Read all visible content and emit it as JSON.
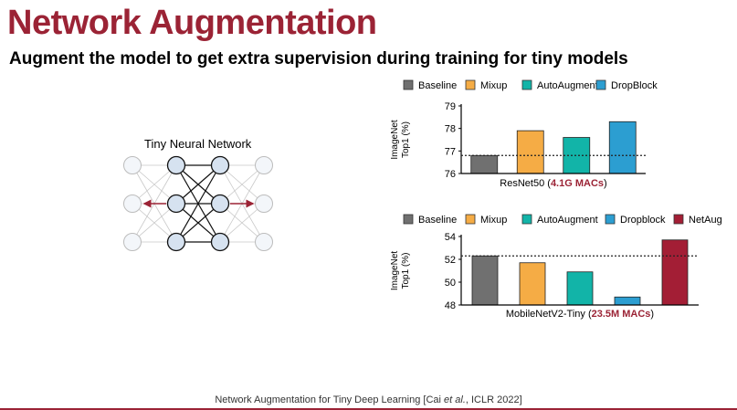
{
  "slide": {
    "title": "Network Augmentation",
    "subtitle": "Augment the model to get extra supervision during training for tiny models"
  },
  "diagram": {
    "label": "Tiny Neural Network"
  },
  "footer": {
    "prefix": "Network Augmentation for Tiny Deep Learning [Cai ",
    "etal": "et al.",
    "suffix": ", ICLR 2022]"
  },
  "colors": {
    "title": "#9b2335",
    "Baseline": "#707070",
    "Mixup": "#f5ac45",
    "AutoAugment": "#12b4a8",
    "DropBlock": "#2c9ed1",
    "NetAug": "#a31e35"
  },
  "chart_data": [
    {
      "type": "bar",
      "categories": [
        "Baseline",
        "Mixup",
        "AutoAugment",
        "DropBlock"
      ],
      "values": [
        76.8,
        77.9,
        77.6,
        78.3
      ],
      "legend": [
        "Baseline",
        "Mixup",
        "AutoAugment",
        "DropBlock"
      ],
      "ylabel": "ImageNet Top1 (%)",
      "ylim": [
        76,
        79
      ],
      "yticks": [
        76,
        77,
        78,
        79
      ],
      "baseline_line": 76.8,
      "xlabel_prefix": "ResNet50 (",
      "xlabel_highlight": "4.1G MACs",
      "xlabel_suffix": ")",
      "legend_position": "top",
      "grid": false
    },
    {
      "type": "bar",
      "categories": [
        "Baseline",
        "Mixup",
        "AutoAugment",
        "Dropblock",
        "NetAug"
      ],
      "values": [
        52.3,
        51.7,
        50.9,
        48.7,
        53.7
      ],
      "legend": [
        "Baseline",
        "Mixup",
        "AutoAugment",
        "Dropblock",
        "NetAug"
      ],
      "ylabel": "ImageNet Top1 (%)",
      "ylim": [
        48,
        54
      ],
      "yticks": [
        48,
        50,
        52,
        54
      ],
      "baseline_line": 52.3,
      "xlabel_prefix": "MobileNetV2-Tiny (",
      "xlabel_highlight": "23.5M MACs",
      "xlabel_suffix": ")",
      "legend_position": "top",
      "grid": false
    }
  ]
}
